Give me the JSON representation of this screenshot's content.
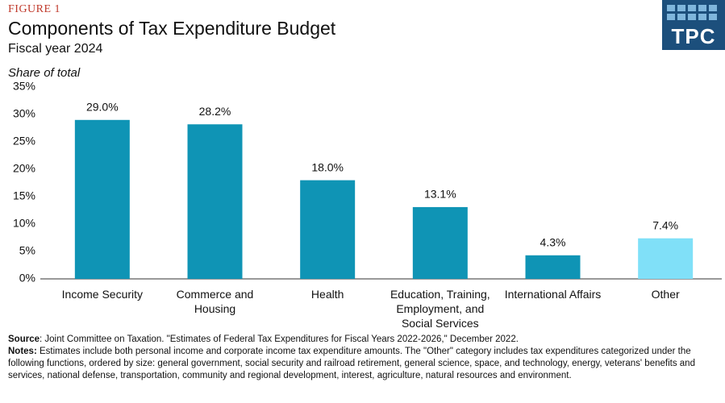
{
  "chart_data": {
    "type": "bar",
    "figure_label": "FIGURE 1",
    "title": "Components of Tax Expenditure Budget",
    "subtitle": "Fiscal year 2024",
    "y_label": "Share of total",
    "logo": "TPC",
    "categories": [
      "Income Security",
      "Commerce and Housing",
      "Health",
      "Education, Training, Employment, and Social Services",
      "International Affairs",
      "Other"
    ],
    "values": [
      29.0,
      28.2,
      18.0,
      13.1,
      4.3,
      7.4
    ],
    "value_labels": [
      "29.0%",
      "28.2%",
      "18.0%",
      "13.1%",
      "4.3%",
      "7.4%"
    ],
    "colors": [
      "#0f94b5",
      "#0f94b5",
      "#0f94b5",
      "#0f94b5",
      "#0f94b5",
      "#80e0f8"
    ],
    "ylim": [
      0,
      35
    ],
    "yticks": [
      {
        "value": 0,
        "label": "0%"
      },
      {
        "value": 5,
        "label": "5%"
      },
      {
        "value": 10,
        "label": "10%"
      },
      {
        "value": 15,
        "label": "15%"
      },
      {
        "value": 20,
        "label": "20%"
      },
      {
        "value": 25,
        "label": "25%"
      },
      {
        "value": 30,
        "label": "30%"
      },
      {
        "value": 35,
        "label": "35%"
      }
    ],
    "grid": false,
    "source_label": "Source",
    "source": ": Joint Committee on Taxation. \"Estimates of Federal Tax Expenditures for Fiscal Years 2022-2026,\"  December 2022.",
    "notes_label": "Notes:",
    "notes": " Estimates include both personal income and corporate income tax expenditure amounts. The \"Other\" category includes tax expenditures categorized under the following functions, ordered by size: general government, social security and railroad retirement, general science, space, and technology, energy, veterans' benefits and services, national defense, transportation, community and regional development, interest, agriculture, natural resources and environment."
  }
}
